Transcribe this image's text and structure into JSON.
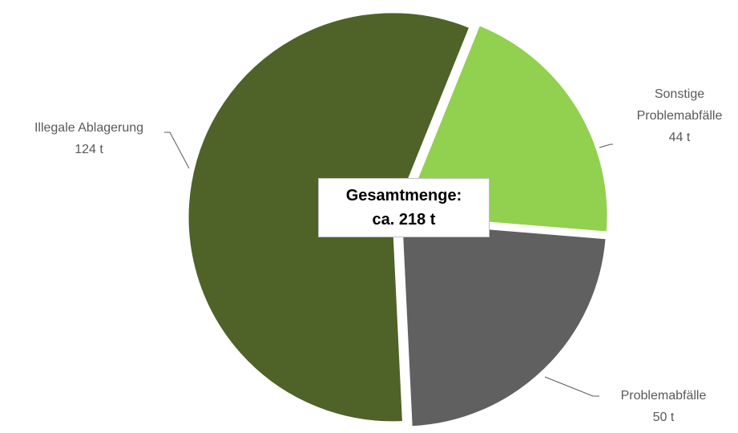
{
  "chart_data": {
    "type": "pie",
    "categories": [
      "Sonstige Problemabfälle",
      "Problemabfälle",
      "Illegale Ablagerung"
    ],
    "values": [
      44,
      50,
      124
    ],
    "value_labels": [
      "44 t",
      "50 t",
      "124 t"
    ],
    "colors": [
      "#92d050",
      "#606060",
      "#4f6228"
    ],
    "annotation": [
      "Gesamtmenge:",
      "ca. 218 t"
    ]
  }
}
